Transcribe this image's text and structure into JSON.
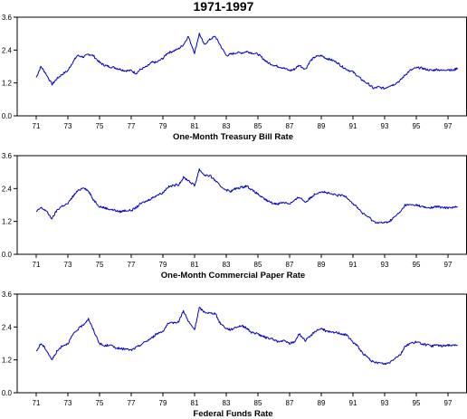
{
  "chart_data": [
    {
      "type": "line",
      "title": "1971-1997",
      "xlabel": "One-Month Treasury Bill Rate",
      "ylabel": "",
      "x_tick_labels": [
        "71",
        "73",
        "75",
        "77",
        "79",
        "81",
        "83",
        "85",
        "87",
        "89",
        "91",
        "93",
        "95",
        "97"
      ],
      "x_ticks": [
        1971,
        1973,
        1975,
        1977,
        1979,
        1981,
        1983,
        1985,
        1987,
        1989,
        1991,
        1993,
        1995,
        1997
      ],
      "y_tick_labels": [
        "0.0",
        "1.2",
        "2.4",
        "3.6"
      ],
      "y_ticks": [
        0.0,
        1.2,
        2.4,
        3.6
      ],
      "xlim": [
        1969.8,
        1998.2
      ],
      "ylim": [
        0.0,
        3.6
      ],
      "grid": false,
      "color": "#0000cc",
      "series": [
        {
          "x": [
            1971.0,
            1971.3,
            1971.6,
            1972.0,
            1972.3,
            1972.6,
            1973.0,
            1973.3,
            1973.6,
            1974.0,
            1974.3,
            1974.6,
            1975.0,
            1975.3,
            1975.6,
            1976.0,
            1976.3,
            1976.6,
            1977.0,
            1977.3,
            1977.6,
            1978.0,
            1978.3,
            1978.6,
            1979.0,
            1979.3,
            1979.6,
            1980.0,
            1980.3,
            1980.6,
            1981.0,
            1981.3,
            1981.6,
            1982.0,
            1982.3,
            1982.6,
            1983.0,
            1983.3,
            1983.6,
            1984.0,
            1984.3,
            1984.6,
            1985.0,
            1985.3,
            1985.6,
            1986.0,
            1986.3,
            1986.6,
            1987.0,
            1987.3,
            1987.6,
            1988.0,
            1988.3,
            1988.6,
            1989.0,
            1989.3,
            1989.6,
            1990.0,
            1990.3,
            1990.6,
            1991.0,
            1991.3,
            1991.6,
            1992.0,
            1992.3,
            1992.6,
            1993.0,
            1993.3,
            1993.6,
            1994.0,
            1994.3,
            1994.6,
            1995.0,
            1995.3,
            1995.6,
            1996.0,
            1996.3,
            1996.6,
            1997.0,
            1997.3,
            1997.6
          ],
          "values": [
            1.4,
            1.8,
            1.55,
            1.15,
            1.35,
            1.5,
            1.65,
            1.95,
            2.2,
            2.15,
            2.25,
            2.2,
            1.95,
            1.85,
            1.8,
            1.75,
            1.7,
            1.65,
            1.65,
            1.55,
            1.7,
            1.8,
            1.95,
            1.95,
            2.1,
            2.3,
            2.35,
            2.45,
            2.6,
            2.9,
            2.3,
            3.0,
            2.6,
            2.8,
            2.9,
            2.6,
            2.2,
            2.25,
            2.3,
            2.3,
            2.35,
            2.3,
            2.25,
            2.1,
            1.95,
            1.85,
            1.8,
            1.75,
            1.65,
            1.7,
            1.85,
            1.7,
            2.0,
            2.15,
            2.2,
            2.1,
            2.05,
            1.95,
            1.8,
            1.7,
            1.6,
            1.45,
            1.3,
            1.15,
            1.0,
            1.05,
            1.0,
            1.1,
            1.15,
            1.3,
            1.5,
            1.65,
            1.75,
            1.75,
            1.7,
            1.65,
            1.7,
            1.65,
            1.7,
            1.65,
            1.75
          ]
        }
      ]
    },
    {
      "type": "line",
      "xlabel": "One-Month Commercial Paper Rate",
      "ylabel": "",
      "x_tick_labels": [
        "71",
        "73",
        "75",
        "77",
        "79",
        "81",
        "83",
        "85",
        "87",
        "89",
        "91",
        "93",
        "95",
        "97"
      ],
      "x_ticks": [
        1971,
        1973,
        1975,
        1977,
        1979,
        1981,
        1983,
        1985,
        1987,
        1989,
        1991,
        1993,
        1995,
        1997
      ],
      "y_tick_labels": [
        "0.0",
        "1.2",
        "2.4",
        "3.6"
      ],
      "y_ticks": [
        0.0,
        1.2,
        2.4,
        3.6
      ],
      "xlim": [
        1969.8,
        1998.2
      ],
      "ylim": [
        0.0,
        3.6
      ],
      "grid": false,
      "color": "#0000cc",
      "series": [
        {
          "x": [
            1971.0,
            1971.3,
            1971.6,
            1972.0,
            1972.3,
            1972.6,
            1973.0,
            1973.3,
            1973.6,
            1974.0,
            1974.3,
            1974.6,
            1975.0,
            1975.3,
            1975.6,
            1976.0,
            1976.3,
            1976.6,
            1977.0,
            1977.3,
            1977.6,
            1978.0,
            1978.3,
            1978.6,
            1979.0,
            1979.3,
            1979.6,
            1980.0,
            1980.3,
            1980.6,
            1981.0,
            1981.3,
            1981.6,
            1982.0,
            1982.3,
            1982.6,
            1983.0,
            1983.3,
            1983.6,
            1984.0,
            1984.3,
            1984.6,
            1985.0,
            1985.3,
            1985.6,
            1986.0,
            1986.3,
            1986.6,
            1987.0,
            1987.3,
            1987.6,
            1988.0,
            1988.3,
            1988.6,
            1989.0,
            1989.3,
            1989.6,
            1990.0,
            1990.3,
            1990.6,
            1991.0,
            1991.3,
            1991.6,
            1992.0,
            1992.3,
            1992.6,
            1993.0,
            1993.3,
            1993.6,
            1994.0,
            1994.3,
            1994.6,
            1995.0,
            1995.3,
            1995.6,
            1996.0,
            1996.3,
            1996.6,
            1997.0,
            1997.3,
            1997.6
          ],
          "values": [
            1.55,
            1.7,
            1.6,
            1.3,
            1.6,
            1.75,
            1.85,
            2.1,
            2.3,
            2.45,
            2.3,
            2.0,
            1.75,
            1.7,
            1.65,
            1.6,
            1.55,
            1.6,
            1.6,
            1.7,
            1.85,
            1.95,
            2.05,
            2.15,
            2.25,
            2.45,
            2.5,
            2.55,
            2.8,
            2.7,
            2.5,
            3.1,
            2.9,
            2.85,
            2.7,
            2.5,
            2.35,
            2.3,
            2.4,
            2.45,
            2.5,
            2.35,
            2.2,
            2.05,
            1.95,
            1.85,
            1.85,
            1.9,
            1.85,
            1.95,
            2.1,
            1.9,
            2.05,
            2.2,
            2.3,
            2.25,
            2.2,
            2.15,
            2.15,
            2.1,
            1.85,
            1.7,
            1.5,
            1.35,
            1.2,
            1.15,
            1.15,
            1.2,
            1.35,
            1.55,
            1.8,
            1.8,
            1.8,
            1.75,
            1.7,
            1.7,
            1.75,
            1.7,
            1.7,
            1.72,
            1.72
          ]
        }
      ]
    },
    {
      "type": "line",
      "xlabel": "Federal Funds Rate",
      "ylabel": "",
      "x_tick_labels": [
        "71",
        "73",
        "75",
        "77",
        "79",
        "81",
        "83",
        "85",
        "87",
        "89",
        "91",
        "93",
        "95",
        "97"
      ],
      "x_ticks": [
        1971,
        1973,
        1975,
        1977,
        1979,
        1981,
        1983,
        1985,
        1987,
        1989,
        1991,
        1993,
        1995,
        1997
      ],
      "y_tick_labels": [
        "0.0",
        "1.2",
        "2.4",
        "3.6"
      ],
      "y_ticks": [
        0.0,
        1.2,
        2.4,
        3.6
      ],
      "xlim": [
        1969.8,
        1998.2
      ],
      "ylim": [
        0.0,
        3.6
      ],
      "grid": false,
      "color": "#0000cc",
      "series": [
        {
          "x": [
            1971.0,
            1971.3,
            1971.6,
            1972.0,
            1972.3,
            1972.6,
            1973.0,
            1973.3,
            1973.6,
            1974.0,
            1974.3,
            1974.6,
            1975.0,
            1975.3,
            1975.6,
            1976.0,
            1976.3,
            1976.6,
            1977.0,
            1977.3,
            1977.6,
            1978.0,
            1978.3,
            1978.6,
            1979.0,
            1979.3,
            1979.6,
            1980.0,
            1980.3,
            1980.6,
            1981.0,
            1981.3,
            1981.6,
            1982.0,
            1982.3,
            1982.6,
            1983.0,
            1983.3,
            1983.6,
            1984.0,
            1984.3,
            1984.6,
            1985.0,
            1985.3,
            1985.6,
            1986.0,
            1986.3,
            1986.6,
            1987.0,
            1987.3,
            1987.6,
            1988.0,
            1988.3,
            1988.6,
            1989.0,
            1989.3,
            1989.6,
            1990.0,
            1990.3,
            1990.6,
            1991.0,
            1991.3,
            1991.6,
            1992.0,
            1992.3,
            1992.6,
            1993.0,
            1993.3,
            1993.6,
            1994.0,
            1994.3,
            1994.6,
            1995.0,
            1995.3,
            1995.6,
            1996.0,
            1996.3,
            1996.6,
            1997.0,
            1997.3,
            1997.6
          ],
          "values": [
            1.5,
            1.8,
            1.6,
            1.2,
            1.5,
            1.7,
            1.8,
            2.1,
            2.3,
            2.5,
            2.7,
            2.3,
            1.8,
            1.7,
            1.75,
            1.65,
            1.6,
            1.6,
            1.55,
            1.65,
            1.75,
            1.9,
            2.0,
            2.15,
            2.25,
            2.5,
            2.55,
            2.6,
            3.0,
            2.6,
            2.3,
            3.1,
            2.95,
            2.9,
            2.9,
            2.55,
            2.35,
            2.3,
            2.4,
            2.45,
            2.35,
            2.2,
            2.15,
            2.05,
            2.0,
            1.95,
            1.85,
            1.9,
            1.8,
            1.85,
            2.15,
            1.9,
            2.05,
            2.25,
            2.35,
            2.25,
            2.2,
            2.2,
            2.15,
            2.1,
            1.85,
            1.7,
            1.45,
            1.25,
            1.1,
            1.1,
            1.05,
            1.1,
            1.25,
            1.4,
            1.7,
            1.8,
            1.85,
            1.8,
            1.75,
            1.7,
            1.75,
            1.7,
            1.75,
            1.72,
            1.75
          ]
        }
      ]
    }
  ]
}
